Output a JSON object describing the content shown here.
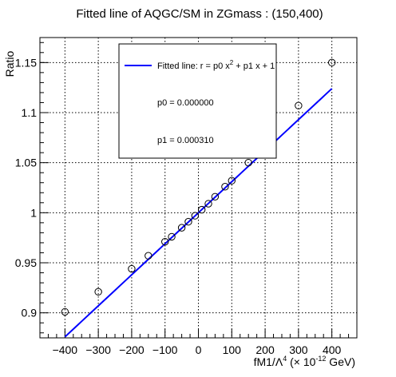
{
  "chart_data": {
    "type": "scatter",
    "title": "Fitted line of AQGC/SM in ZGmass : (150,400)",
    "ylabel": "Ratio",
    "xlabel_main": "fM1/Λ",
    "xlabel_sup": "4",
    "xlabel_paren_open": " (× 10",
    "xlabel_exp": "-12",
    "xlabel_unit": " GeV)",
    "xlim": [
      -475,
      475
    ],
    "ylim": [
      0.875,
      1.175
    ],
    "xticks": [
      -400,
      -300,
      -200,
      -100,
      0,
      100,
      200,
      300,
      400
    ],
    "xtick_labels": [
      "−400",
      "−300",
      "−200",
      "−100",
      "0",
      "100",
      "200",
      "300",
      "400"
    ],
    "yticks": [
      0.9,
      0.95,
      1.0,
      1.05,
      1.1,
      1.15
    ],
    "ytick_labels": [
      "0.9",
      "0.95",
      "1",
      "1.05",
      "1.1",
      "1.15"
    ],
    "grid": true,
    "points": {
      "x": [
        -400,
        -300,
        -200,
        -150,
        -100,
        -80,
        -50,
        -30,
        -10,
        10,
        30,
        50,
        80,
        100,
        150,
        300,
        400
      ],
      "y": [
        0.901,
        0.921,
        0.944,
        0.957,
        0.971,
        0.976,
        0.985,
        0.991,
        0.997,
        1.003,
        1.009,
        1.016,
        1.026,
        1.032,
        1.05,
        1.107,
        1.15
      ]
    },
    "fit": {
      "p0": 0.0,
      "p1": 0.00031,
      "color": "#0000ff"
    },
    "legend": {
      "position": "top",
      "fit_label_prefix": "Fitted line: r =  p0 x",
      "fit_label_sup": "2",
      "fit_label_suffix": " + p1 x + 1",
      "p0_text": "p0 = 0.000000",
      "p1_text": "p1 = 0.000310"
    }
  }
}
